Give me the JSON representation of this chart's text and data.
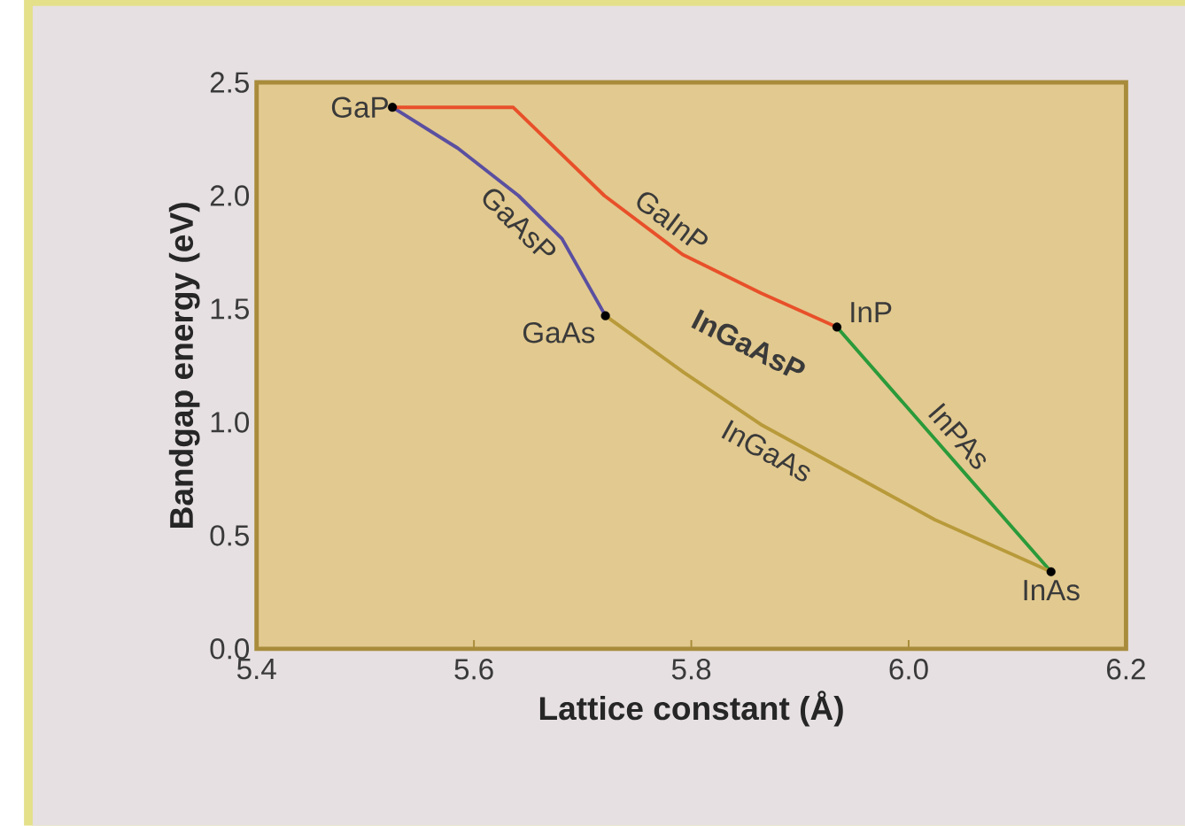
{
  "chart_data": {
    "type": "line",
    "xlabel": "Lattice constant (Å)",
    "ylabel": "Bandgap energy (eV)",
    "xlim": [
      5.4,
      6.2
    ],
    "ylim": [
      0,
      2.5
    ],
    "xticks": [
      {
        "value": 5.4,
        "label": "5.4"
      },
      {
        "value": 5.6,
        "label": "5.6"
      },
      {
        "value": 5.8,
        "label": "5.8"
      },
      {
        "value": 6.0,
        "label": "6.0"
      },
      {
        "value": 6.2,
        "label": "6.2"
      }
    ],
    "yticks": [
      {
        "value": 0,
        "label": "0.0"
      },
      {
        "value": 0.5,
        "label": "0.5"
      },
      {
        "value": 1.0,
        "label": "1.0"
      },
      {
        "value": 1.5,
        "label": "1.5"
      },
      {
        "value": 2.0,
        "label": "2.0"
      },
      {
        "value": 2.5,
        "label": "2.5"
      }
    ],
    "series": [
      {
        "name": "GaAsP",
        "color": "#5a4fa0",
        "x": [
          5.525,
          5.585,
          5.641,
          5.681,
          5.721
        ],
        "values": [
          2.39,
          2.21,
          2.0,
          1.81,
          1.47
        ]
      },
      {
        "name": "GaInP",
        "color": "#e8502a",
        "x": [
          5.525,
          5.636,
          5.72,
          5.792,
          5.864,
          5.934
        ],
        "values": [
          2.39,
          2.39,
          2.0,
          1.74,
          1.57,
          1.42
        ]
      },
      {
        "name": "InPAs",
        "color": "#2a9a3a",
        "x": [
          5.934,
          6.131
        ],
        "values": [
          1.42,
          0.34
        ]
      },
      {
        "name": "InGaAs",
        "color": "#b89a3a",
        "x": [
          5.721,
          5.793,
          5.864,
          5.944,
          6.024,
          6.131
        ],
        "values": [
          1.47,
          1.22,
          0.99,
          0.78,
          0.57,
          0.34
        ]
      },
      {
        "type": "scatter",
        "color": "#000000",
        "x": [
          5.525,
          5.721,
          5.934,
          6.131
        ],
        "values": [
          2.39,
          1.47,
          1.42,
          0.34
        ]
      }
    ],
    "annotations": [
      {
        "text": "GaP",
        "x": 5.525,
        "y": 2.39
      },
      {
        "text": "GaAs",
        "x": 5.721,
        "y": 1.47
      },
      {
        "text": "InP",
        "x": 5.934,
        "y": 1.42
      },
      {
        "text": "InAs",
        "x": 6.131,
        "y": 0.34
      },
      "InGaAsP"
    ]
  }
}
